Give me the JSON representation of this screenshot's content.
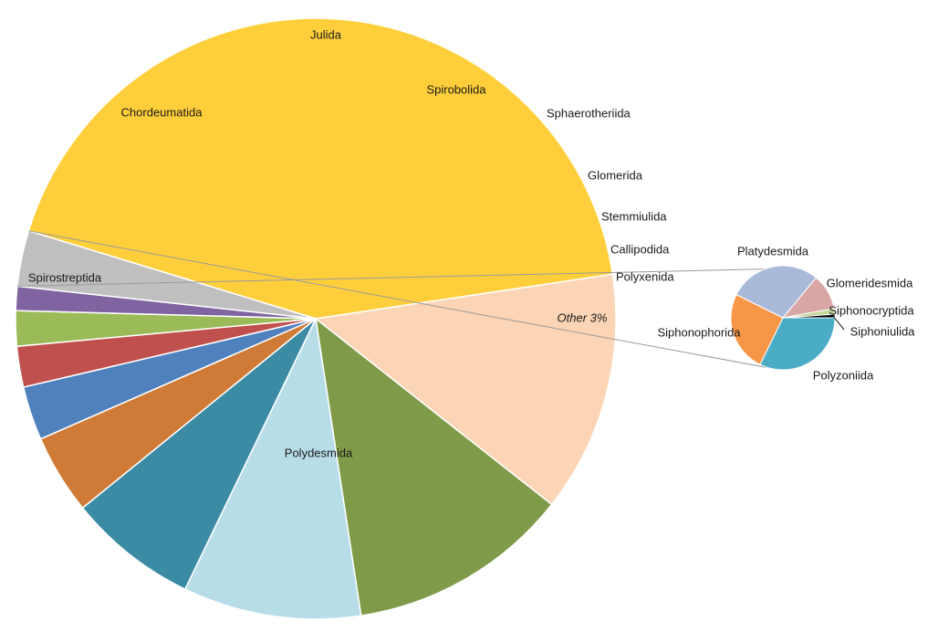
{
  "chart_data": {
    "type": "pie",
    "title": "",
    "main": {
      "slices": [
        {
          "label": "Polydesmida",
          "value": 43,
          "color": "#FFCF3B"
        },
        {
          "label": "Spirostreptida",
          "value": 13,
          "color": "#FBD5B5"
        },
        {
          "label": "Chordeumatida",
          "value": 12,
          "color": "#7F9A48"
        },
        {
          "label": "Julida",
          "value": 9.6,
          "color": "#B7DDE8"
        },
        {
          "label": "Spirobolida",
          "value": 7,
          "color": "#3A8BA3"
        },
        {
          "label": "Sphaerotheriida",
          "value": 4.3,
          "color": "#CF7B37"
        },
        {
          "label": "Glomerida",
          "value": 2.9,
          "color": "#4F81BD"
        },
        {
          "label": "Stemmiulida",
          "value": 2.2,
          "color": "#C0504D"
        },
        {
          "label": "Callipodida",
          "value": 1.9,
          "color": "#9BBB59"
        },
        {
          "label": "Polyxenida",
          "value": 1.3,
          "color": "#8064A2"
        },
        {
          "label": "Other 3%",
          "value": 3,
          "color": "#BFBFBF"
        }
      ]
    },
    "secondary": {
      "slices": [
        {
          "label": "Polyzoniida",
          "value": 0.9,
          "color": "#4BACC6"
        },
        {
          "label": "Siphonophorida",
          "value": 0.7,
          "color": "#F79646"
        },
        {
          "label": "Platydesmida",
          "value": 0.8,
          "color": "#A9B9D9"
        },
        {
          "label": "Glomeridesmida",
          "value": 0.31,
          "color": "#D9A6A6"
        },
        {
          "label": "Siphonocryptida",
          "value": 0.05,
          "color": "#C3D69B"
        },
        {
          "label": "Siphoniulida",
          "value": 0.03,
          "color": "#000000"
        }
      ]
    },
    "legend": "none"
  }
}
